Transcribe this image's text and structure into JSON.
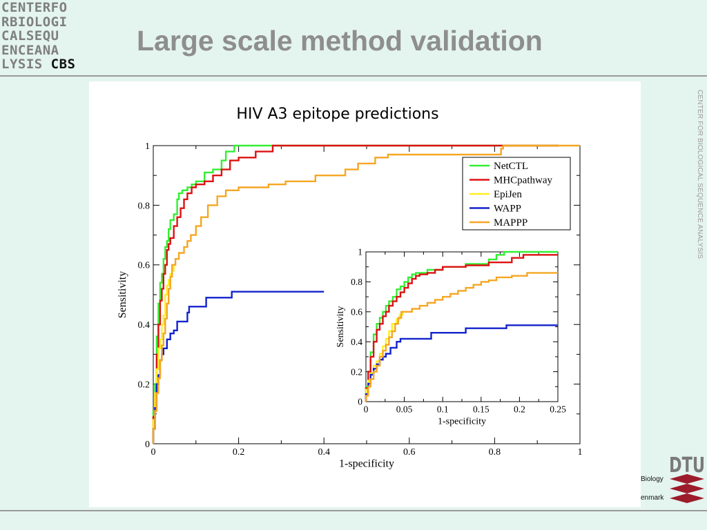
{
  "logo": {
    "rows": [
      "CENTERFO",
      "RBIOLOGI",
      "CALSEQU",
      "ENCEANA",
      "LYSIS "
    ],
    "cbs": "CBS"
  },
  "slide_title": "Large scale method validation",
  "side_text": "CENTER FOR BIOLOGICAL SEQUENCE ANALYSIS",
  "dtu": {
    "wordmark": "DTU",
    "fragment_1": "Biology",
    "fragment_2": "enmark"
  },
  "colors": {
    "background": "#e4f4ef",
    "rule": "#9a9a9a",
    "title": "#8e8e8e",
    "NetCTL": "#33ee33",
    "MHCpathway": "#dd1111",
    "EpiJen": "#ffee22",
    "WAPP": "#1122cc",
    "MAPPP": "#f5a623",
    "dtu_red": "#9c1c2c"
  },
  "chart_data": [
    {
      "type": "line",
      "title": "HIV A3 epitope predictions",
      "xlabel": "1-specificity",
      "ylabel": "Sensitivity",
      "xlim": [
        0,
        1
      ],
      "ylim": [
        0,
        1
      ],
      "xticks": [
        "0",
        "0.2",
        "0.4",
        "0.6",
        "0.8",
        "1"
      ],
      "yticks": [
        "0",
        "0.2",
        "0.4",
        "0.6",
        "0.8",
        "1"
      ],
      "grid": false,
      "legend_position": "top-right",
      "series": [
        {
          "name": "NetCTL",
          "color": "#33ee33",
          "points": [
            [
              0,
              0
            ],
            [
              0,
              0.11
            ],
            [
              0.004,
              0.2
            ],
            [
              0.008,
              0.36
            ],
            [
              0.012,
              0.47
            ],
            [
              0.016,
              0.54
            ],
            [
              0.02,
              0.57
            ],
            [
              0.024,
              0.62
            ],
            [
              0.028,
              0.66
            ],
            [
              0.032,
              0.68
            ],
            [
              0.036,
              0.72
            ],
            [
              0.04,
              0.75
            ],
            [
              0.048,
              0.77
            ],
            [
              0.056,
              0.82
            ],
            [
              0.06,
              0.84
            ],
            [
              0.068,
              0.85
            ],
            [
              0.08,
              0.86
            ],
            [
              0.09,
              0.87
            ],
            [
              0.1,
              0.88
            ],
            [
              0.12,
              0.91
            ],
            [
              0.14,
              0.92
            ],
            [
              0.16,
              0.95
            ],
            [
              0.17,
              0.98
            ],
            [
              0.19,
              1.0
            ],
            [
              0.95,
              1.0
            ]
          ]
        },
        {
          "name": "MHCpathway",
          "color": "#dd1111",
          "points": [
            [
              0,
              0
            ],
            [
              0,
              0.09
            ],
            [
              0.004,
              0.17
            ],
            [
              0.008,
              0.3
            ],
            [
              0.012,
              0.4
            ],
            [
              0.016,
              0.48
            ],
            [
              0.02,
              0.52
            ],
            [
              0.024,
              0.57
            ],
            [
              0.028,
              0.6
            ],
            [
              0.032,
              0.65
            ],
            [
              0.036,
              0.67
            ],
            [
              0.04,
              0.69
            ],
            [
              0.048,
              0.73
            ],
            [
              0.056,
              0.76
            ],
            [
              0.064,
              0.79
            ],
            [
              0.072,
              0.82
            ],
            [
              0.08,
              0.84
            ],
            [
              0.09,
              0.86
            ],
            [
              0.1,
              0.87
            ],
            [
              0.12,
              0.88
            ],
            [
              0.14,
              0.9
            ],
            [
              0.16,
              0.92
            ],
            [
              0.18,
              0.95
            ],
            [
              0.2,
              0.96
            ],
            [
              0.24,
              0.98
            ],
            [
              0.28,
              1.0
            ],
            [
              0.95,
              1.0
            ]
          ]
        },
        {
          "name": "EpiJen",
          "color": "#ffee22",
          "points": [
            [
              0,
              0
            ],
            [
              0,
              0.08
            ],
            [
              0.004,
              0.17
            ],
            [
              0.008,
              0.25
            ],
            [
              0.012,
              0.32
            ],
            [
              0.016,
              0.35
            ],
            [
              0.02,
              0.4
            ],
            [
              0.024,
              0.43
            ],
            [
              0.028,
              0.5
            ],
            [
              0.032,
              0.53
            ],
            [
              0.036,
              0.55
            ],
            [
              0.04,
              0.57
            ],
            [
              0.044,
              0.58
            ],
            [
              0.048,
              0.6
            ]
          ]
        },
        {
          "name": "WAPP",
          "color": "#1122cc",
          "points": [
            [
              0,
              0
            ],
            [
              0,
              0.05
            ],
            [
              0.004,
              0.12
            ],
            [
              0.008,
              0.2
            ],
            [
              0.012,
              0.23
            ],
            [
              0.016,
              0.28
            ],
            [
              0.02,
              0.3
            ],
            [
              0.024,
              0.32
            ],
            [
              0.032,
              0.35
            ],
            [
              0.04,
              0.37
            ],
            [
              0.048,
              0.38
            ],
            [
              0.056,
              0.41
            ],
            [
              0.076,
              0.41
            ],
            [
              0.08,
              0.44
            ],
            [
              0.084,
              0.46
            ],
            [
              0.12,
              0.46
            ],
            [
              0.124,
              0.49
            ],
            [
              0.18,
              0.49
            ],
            [
              0.184,
              0.51
            ],
            [
              0.4,
              0.51
            ]
          ]
        },
        {
          "name": "MAPPP",
          "color": "#f5a623",
          "points": [
            [
              0,
              0
            ],
            [
              0,
              0.05
            ],
            [
              0.004,
              0.11
            ],
            [
              0.008,
              0.17
            ],
            [
              0.012,
              0.22
            ],
            [
              0.016,
              0.28
            ],
            [
              0.02,
              0.33
            ],
            [
              0.024,
              0.37
            ],
            [
              0.028,
              0.42
            ],
            [
              0.032,
              0.47
            ],
            [
              0.036,
              0.52
            ],
            [
              0.04,
              0.56
            ],
            [
              0.044,
              0.6
            ],
            [
              0.052,
              0.62
            ],
            [
              0.06,
              0.64
            ],
            [
              0.072,
              0.66
            ],
            [
              0.08,
              0.68
            ],
            [
              0.088,
              0.7
            ],
            [
              0.1,
              0.73
            ],
            [
              0.112,
              0.76
            ],
            [
              0.128,
              0.8
            ],
            [
              0.15,
              0.83
            ],
            [
              0.17,
              0.85
            ],
            [
              0.2,
              0.86
            ],
            [
              0.25,
              0.86
            ],
            [
              0.27,
              0.87
            ],
            [
              0.31,
              0.88
            ],
            [
              0.35,
              0.88
            ],
            [
              0.38,
              0.9
            ],
            [
              0.45,
              0.92
            ],
            [
              0.48,
              0.94
            ],
            [
              0.52,
              0.96
            ],
            [
              0.55,
              0.97
            ],
            [
              0.64,
              0.97
            ],
            [
              0.76,
              0.97
            ],
            [
              0.81,
              0.97
            ],
            [
              0.815,
              0.99
            ],
            [
              0.82,
              1.0
            ],
            [
              1.0,
              1.0
            ]
          ]
        }
      ]
    },
    {
      "type": "line",
      "title": "",
      "xlabel": "1-specificity",
      "ylabel": "Sensitivity",
      "xlim": [
        0,
        0.25
      ],
      "ylim": [
        0,
        1
      ],
      "xticks": [
        "0",
        "0.05",
        "0.1",
        "0.15",
        "0.2",
        "0.25"
      ],
      "yticks": [
        "0",
        "0.2",
        "0.4",
        "0.6",
        "0.8",
        "1"
      ],
      "grid": false,
      "series": [
        {
          "name": "NetCTL",
          "color": "#33ee33",
          "points": [
            [
              0,
              0
            ],
            [
              0,
              0.1
            ],
            [
              0.003,
              0.2
            ],
            [
              0.006,
              0.33
            ],
            [
              0.01,
              0.45
            ],
            [
              0.014,
              0.52
            ],
            [
              0.018,
              0.56
            ],
            [
              0.022,
              0.6
            ],
            [
              0.026,
              0.64
            ],
            [
              0.03,
              0.67
            ],
            [
              0.035,
              0.7
            ],
            [
              0.04,
              0.75
            ],
            [
              0.045,
              0.77
            ],
            [
              0.05,
              0.8
            ],
            [
              0.055,
              0.83
            ],
            [
              0.06,
              0.85
            ],
            [
              0.065,
              0.86
            ],
            [
              0.08,
              0.88
            ],
            [
              0.1,
              0.9
            ],
            [
              0.13,
              0.92
            ],
            [
              0.16,
              0.95
            ],
            [
              0.17,
              0.98
            ],
            [
              0.18,
              1.0
            ],
            [
              0.25,
              1.0
            ]
          ]
        },
        {
          "name": "MHCpathway",
          "color": "#dd1111",
          "points": [
            [
              0,
              0
            ],
            [
              0,
              0.09
            ],
            [
              0.003,
              0.2
            ],
            [
              0.006,
              0.3
            ],
            [
              0.01,
              0.4
            ],
            [
              0.014,
              0.48
            ],
            [
              0.018,
              0.52
            ],
            [
              0.022,
              0.57
            ],
            [
              0.026,
              0.6
            ],
            [
              0.03,
              0.64
            ],
            [
              0.035,
              0.67
            ],
            [
              0.04,
              0.7
            ],
            [
              0.045,
              0.73
            ],
            [
              0.05,
              0.76
            ],
            [
              0.055,
              0.79
            ],
            [
              0.06,
              0.82
            ],
            [
              0.065,
              0.84
            ],
            [
              0.07,
              0.85
            ],
            [
              0.08,
              0.86
            ],
            [
              0.09,
              0.88
            ],
            [
              0.1,
              0.9
            ],
            [
              0.13,
              0.91
            ],
            [
              0.16,
              0.93
            ],
            [
              0.19,
              0.96
            ],
            [
              0.205,
              0.98
            ],
            [
              0.25,
              0.98
            ]
          ]
        },
        {
          "name": "EpiJen",
          "color": "#ffee22",
          "points": [
            [
              0,
              0
            ],
            [
              0,
              0.08
            ],
            [
              0.003,
              0.14
            ],
            [
              0.006,
              0.19
            ],
            [
              0.01,
              0.24
            ],
            [
              0.014,
              0.27
            ],
            [
              0.018,
              0.32
            ],
            [
              0.022,
              0.37
            ],
            [
              0.026,
              0.42
            ],
            [
              0.03,
              0.47
            ],
            [
              0.034,
              0.52
            ],
            [
              0.04,
              0.55
            ],
            [
              0.044,
              0.58
            ],
            [
              0.048,
              0.6
            ]
          ]
        },
        {
          "name": "WAPP",
          "color": "#1122cc",
          "points": [
            [
              0,
              0
            ],
            [
              0,
              0.05
            ],
            [
              0.003,
              0.12
            ],
            [
              0.006,
              0.18
            ],
            [
              0.01,
              0.22
            ],
            [
              0.014,
              0.25
            ],
            [
              0.018,
              0.28
            ],
            [
              0.022,
              0.3
            ],
            [
              0.026,
              0.32
            ],
            [
              0.032,
              0.36
            ],
            [
              0.04,
              0.4
            ],
            [
              0.045,
              0.42
            ],
            [
              0.08,
              0.42
            ],
            [
              0.085,
              0.46
            ],
            [
              0.12,
              0.46
            ],
            [
              0.13,
              0.49
            ],
            [
              0.18,
              0.49
            ],
            [
              0.183,
              0.51
            ],
            [
              0.25,
              0.51
            ]
          ]
        },
        {
          "name": "MAPPP",
          "color": "#f5a623",
          "points": [
            [
              0,
              0
            ],
            [
              0,
              0.04
            ],
            [
              0.003,
              0.1
            ],
            [
              0.006,
              0.15
            ],
            [
              0.01,
              0.2
            ],
            [
              0.014,
              0.24
            ],
            [
              0.018,
              0.3
            ],
            [
              0.022,
              0.34
            ],
            [
              0.026,
              0.38
            ],
            [
              0.03,
              0.43
            ],
            [
              0.034,
              0.47
            ],
            [
              0.038,
              0.52
            ],
            [
              0.042,
              0.56
            ],
            [
              0.046,
              0.6
            ],
            [
              0.06,
              0.62
            ],
            [
              0.07,
              0.64
            ],
            [
              0.08,
              0.66
            ],
            [
              0.09,
              0.68
            ],
            [
              0.1,
              0.7
            ],
            [
              0.11,
              0.72
            ],
            [
              0.12,
              0.74
            ],
            [
              0.13,
              0.76
            ],
            [
              0.14,
              0.78
            ],
            [
              0.15,
              0.8
            ],
            [
              0.16,
              0.81
            ],
            [
              0.17,
              0.83
            ],
            [
              0.19,
              0.84
            ],
            [
              0.21,
              0.86
            ],
            [
              0.25,
              0.86
            ]
          ]
        }
      ]
    }
  ]
}
